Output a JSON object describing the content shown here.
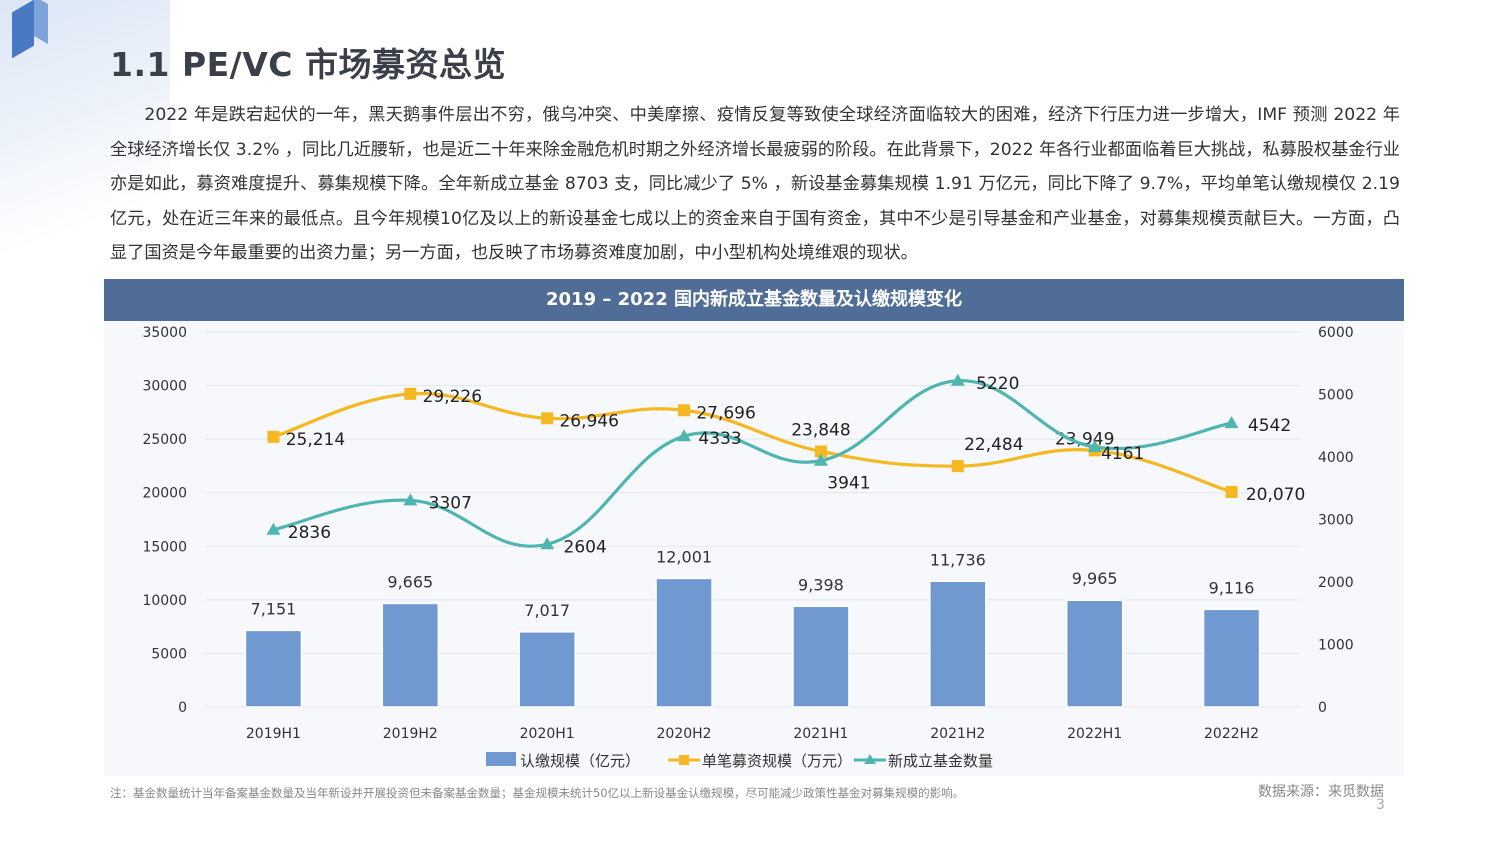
{
  "title": "1.1  PE/VC 市场募资总览",
  "paragraph": "2022 年是跌宕起伏的一年，黑天鹅事件层出不穷，俄乌冲突、中美摩擦、疫情反复等致使全球经济面临较大的困难，经济下行压力进一步增大，IMF 预测 2022 年全球经济增长仅 3.2% ，同比几近腰斩，也是近二十年来除金融危机时期之外经济增长最疲弱的阶段。在此背景下，2022 年各行业都面临着巨大挑战，私募股权基金行业亦是如此，募资难度提升、募集规模下降。全年新成立基金 8703 支，同比减少了 5% ，新设基金募集规模 1.91 万亿元，同比下降了 9.7%，平均单笔认缴规模仅 2.19 亿元，处在近三年来的最低点。且今年规模10亿及以上的新设基金七成以上的资金来自于国有资金，其中不少是引导基金和产业基金，对募集规模贡献巨大。一方面，凸显了国资是今年最重要的出资力量；另一方面，也反映了市场募资难度加剧，中小型机构处境维艰的现状。",
  "note": "注：基金数量统计当年备案基金数量及当年新设并开展投资但未备案基金数量；基金规模未统计50亿以上新设基金认缴规模，尽可能减少政策性基金对募集规模的影响。",
  "source": "数据来源：来觅数据",
  "page_number": "3",
  "chart_data": {
    "type": "bar+line",
    "title": "2019 – 2022 国内新成立基金数量及认缴规模变化",
    "categories": [
      "2019H1",
      "2019H2",
      "2020H1",
      "2020H2",
      "2021H1",
      "2021H2",
      "2022H1",
      "2022H2"
    ],
    "left_axis": {
      "min": 0,
      "max": 35000,
      "ticks": [
        "0",
        "5000",
        "10000",
        "15000",
        "20000",
        "25000",
        "30000",
        "35000"
      ]
    },
    "right_axis": {
      "min": 0,
      "max": 6000,
      "ticks": [
        "0",
        "1000",
        "2000",
        "3000",
        "4000",
        "5000",
        "6000"
      ]
    },
    "series": [
      {
        "name": "认缴规模（亿元）",
        "kind": "bar",
        "axis": "left",
        "color": "#6f99d0",
        "values": [
          7151,
          9665,
          7017,
          12001,
          9398,
          11736,
          9965,
          9116
        ],
        "labels": [
          "7,151",
          "9,665",
          "7,017",
          "12,001",
          "9,398",
          "11,736",
          "9,965",
          "9,116"
        ]
      },
      {
        "name": "单笔募资规模（万元）",
        "kind": "line",
        "axis": "left",
        "color": "#f5b820",
        "values": [
          25214,
          29226,
          26946,
          27696,
          23848,
          22484,
          23949,
          20070
        ],
        "labels": [
          "25,214",
          "29,226",
          "26,946",
          "27,696",
          "23,848",
          "22,484",
          "23,949",
          "20,070"
        ]
      },
      {
        "name": "新成立基金数量",
        "kind": "line",
        "axis": "right",
        "color": "#4fb5b0",
        "values": [
          2836,
          3307,
          2604,
          4333,
          3941,
          5220,
          4161,
          4542
        ],
        "labels": [
          "2836",
          "3307",
          "2604",
          "4333",
          "3941",
          "5220",
          "4161",
          "4542"
        ]
      }
    ],
    "grid": true,
    "legend": "bottom"
  }
}
